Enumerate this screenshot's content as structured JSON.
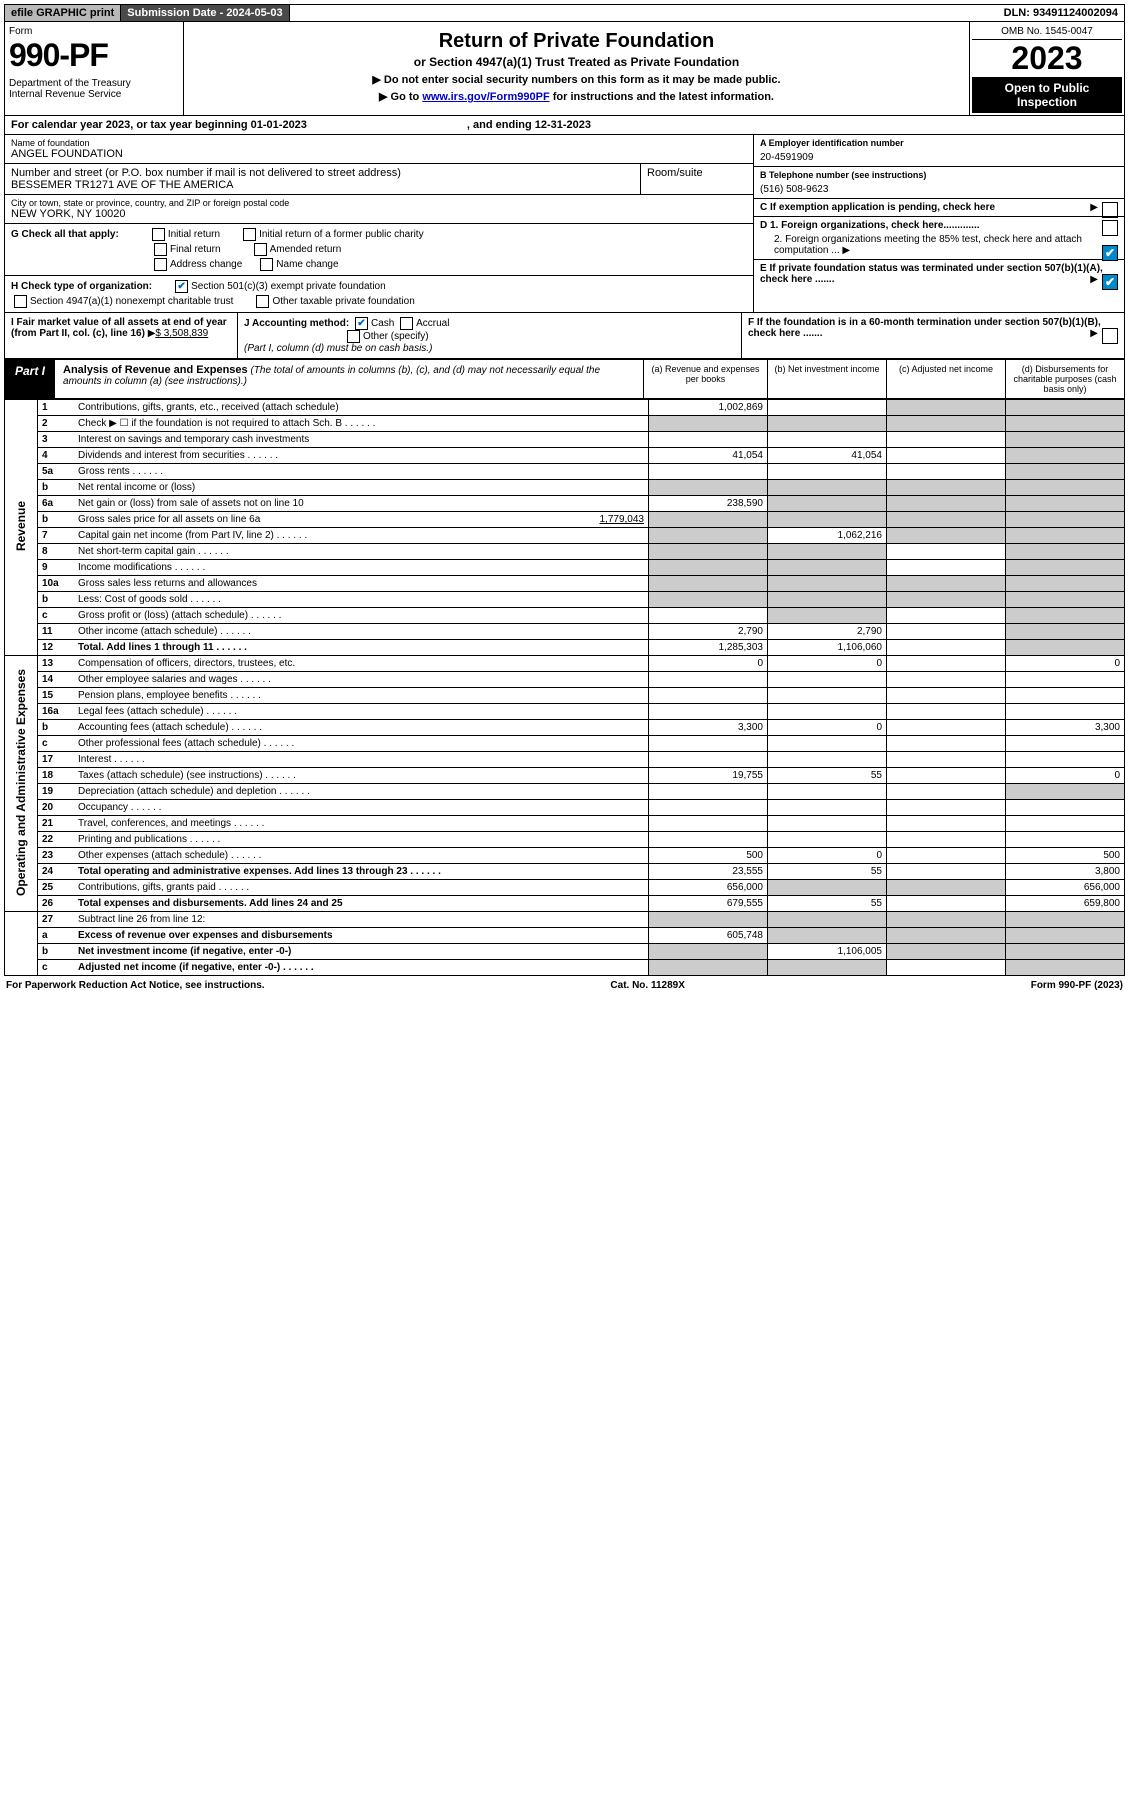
{
  "top": {
    "efile": "efile GRAPHIC print",
    "submission": "Submission Date - 2024-05-03",
    "dln": "DLN: 93491124002094"
  },
  "header": {
    "form_label": "Form",
    "form_number": "990-PF",
    "dept": "Department of the Treasury\nInternal Revenue Service",
    "title": "Return of Private Foundation",
    "subtitle": "or Section 4947(a)(1) Trust Treated as Private Foundation",
    "note1": "▶ Do not enter social security numbers on this form as it may be made public.",
    "note2_pre": "▶ Go to ",
    "note2_link": "www.irs.gov/Form990PF",
    "note2_post": " for instructions and the latest information.",
    "omb": "OMB No. 1545-0047",
    "year": "2023",
    "open": "Open to Public Inspection"
  },
  "calendar": {
    "text": "For calendar year 2023, or tax year beginning 01-01-2023",
    "ending": ", and ending 12-31-2023"
  },
  "info": {
    "name_label": "Name of foundation",
    "name": "ANGEL FOUNDATION",
    "addr_label": "Number and street (or P.O. box number if mail is not delivered to street address)",
    "addr": "BESSEMER TR1271 AVE OF THE AMERICA",
    "room_label": "Room/suite",
    "city_label": "City or town, state or province, country, and ZIP or foreign postal code",
    "city": "NEW YORK, NY  10020",
    "ein_label": "A Employer identification number",
    "ein": "20-4591909",
    "phone_label": "B Telephone number (see instructions)",
    "phone": "(516) 508-9623",
    "c_label": "C If exemption application is pending, check here",
    "d1": "D 1. Foreign organizations, check here.............",
    "d2": "2. Foreign organizations meeting the 85% test, check here and attach computation ...",
    "e_label": "E  If private foundation status was terminated under section 507(b)(1)(A), check here .......",
    "f_label": "F  If the foundation is in a 60-month termination under section 507(b)(1)(B), check here .......",
    "g_label": "G Check all that apply:",
    "g_opts": [
      "Initial return",
      "Initial return of a former public charity",
      "Final return",
      "Amended return",
      "Address change",
      "Name change"
    ],
    "h_label": "H Check type of organization:",
    "h_opt1": "Section 501(c)(3) exempt private foundation",
    "h_opt2": "Section 4947(a)(1) nonexempt charitable trust",
    "h_opt3": "Other taxable private foundation",
    "i_label": "I Fair market value of all assets at end of year (from Part II, col. (c), line 16)",
    "i_value": "$  3,508,839",
    "j_label": "J Accounting method:",
    "j_cash": "Cash",
    "j_accrual": "Accrual",
    "j_other": "Other (specify)",
    "j_note": "(Part I, column (d) must be on cash basis.)"
  },
  "part1": {
    "label": "Part I",
    "title": "Analysis of Revenue and Expenses",
    "title_note": "(The total of amounts in columns (b), (c), and (d) may not necessarily equal the amounts in column (a) (see instructions).)",
    "col_a": "(a) Revenue and expenses per books",
    "col_b": "(b) Net investment income",
    "col_c": "(c) Adjusted net income",
    "col_d": "(d) Disbursements for charitable purposes (cash basis only)"
  },
  "side": {
    "revenue": "Revenue",
    "expenses": "Operating and Administrative Expenses"
  },
  "rows": [
    {
      "n": "1",
      "d": "Contributions, gifts, grants, etc., received (attach schedule)",
      "a": "1,002,869",
      "b": "",
      "c_shade": true,
      "d_shade": true
    },
    {
      "n": "2",
      "d": "Check ▶ ☐ if the foundation is not required to attach Sch. B",
      "dots": true,
      "a_shade": true,
      "b_shade": true,
      "c_shade": true,
      "d_shade": true
    },
    {
      "n": "3",
      "d": "Interest on savings and temporary cash investments",
      "a": "",
      "b": "",
      "c": "",
      "d_shade": true
    },
    {
      "n": "4",
      "d": "Dividends and interest from securities",
      "dots": true,
      "a": "41,054",
      "b": "41,054",
      "c": "",
      "d_shade": true
    },
    {
      "n": "5a",
      "d": "Gross rents",
      "dots": true,
      "a": "",
      "b": "",
      "c": "",
      "d_shade": true
    },
    {
      "n": "b",
      "d": "Net rental income or (loss)",
      "underline": true,
      "a_shade": true,
      "b_shade": true,
      "c_shade": true,
      "d_shade": true
    },
    {
      "n": "6a",
      "d": "Net gain or (loss) from sale of assets not on line 10",
      "a": "238,590",
      "b_shade": true,
      "c_shade": true,
      "d_shade": true
    },
    {
      "n": "b",
      "d": "Gross sales price for all assets on line 6a",
      "val": "1,779,043",
      "underline": true,
      "a_shade": true,
      "b_shade": true,
      "c_shade": true,
      "d_shade": true
    },
    {
      "n": "7",
      "d": "Capital gain net income (from Part IV, line 2)",
      "dots": true,
      "a_shade": true,
      "b": "1,062,216",
      "c_shade": true,
      "d_shade": true
    },
    {
      "n": "8",
      "d": "Net short-term capital gain",
      "dots": true,
      "a_shade": true,
      "b_shade": true,
      "c": "",
      "d_shade": true
    },
    {
      "n": "9",
      "d": "Income modifications",
      "dots": true,
      "a_shade": true,
      "b_shade": true,
      "c": "",
      "d_shade": true
    },
    {
      "n": "10a",
      "d": "Gross sales less returns and allowances",
      "underline": true,
      "a_shade": true,
      "b_shade": true,
      "c_shade": true,
      "d_shade": true
    },
    {
      "n": "b",
      "d": "Less: Cost of goods sold",
      "dots": true,
      "underline": true,
      "a_shade": true,
      "b_shade": true,
      "c_shade": true,
      "d_shade": true
    },
    {
      "n": "c",
      "d": "Gross profit or (loss) (attach schedule)",
      "dots": true,
      "a": "",
      "b_shade": true,
      "c": "",
      "d_shade": true
    },
    {
      "n": "11",
      "d": "Other income (attach schedule)",
      "dots": true,
      "a": "2,790",
      "b": "2,790",
      "c": "",
      "d_shade": true
    },
    {
      "n": "12",
      "d": "Total. Add lines 1 through 11",
      "bold": true,
      "dots": true,
      "a": "1,285,303",
      "b": "1,106,060",
      "c": "",
      "d_shade": true
    }
  ],
  "exp_rows": [
    {
      "n": "13",
      "d": "Compensation of officers, directors, trustees, etc.",
      "a": "0",
      "b": "0",
      "c": "",
      "dd": "0"
    },
    {
      "n": "14",
      "d": "Other employee salaries and wages",
      "dots": true
    },
    {
      "n": "15",
      "d": "Pension plans, employee benefits",
      "dots": true
    },
    {
      "n": "16a",
      "d": "Legal fees (attach schedule)",
      "dots": true
    },
    {
      "n": "b",
      "d": "Accounting fees (attach schedule)",
      "dots": true,
      "a": "3,300",
      "b": "0",
      "dd": "3,300"
    },
    {
      "n": "c",
      "d": "Other professional fees (attach schedule)",
      "dots": true
    },
    {
      "n": "17",
      "d": "Interest",
      "dots": true
    },
    {
      "n": "18",
      "d": "Taxes (attach schedule) (see instructions)",
      "dots": true,
      "a": "19,755",
      "b": "55",
      "dd": "0"
    },
    {
      "n": "19",
      "d": "Depreciation (attach schedule) and depletion",
      "dots": true,
      "d_shade": true
    },
    {
      "n": "20",
      "d": "Occupancy",
      "dots": true
    },
    {
      "n": "21",
      "d": "Travel, conferences, and meetings",
      "dots": true
    },
    {
      "n": "22",
      "d": "Printing and publications",
      "dots": true
    },
    {
      "n": "23",
      "d": "Other expenses (attach schedule)",
      "dots": true,
      "a": "500",
      "b": "0",
      "dd": "500"
    },
    {
      "n": "24",
      "d": "Total operating and administrative expenses. Add lines 13 through 23",
      "bold": true,
      "dots": true,
      "a": "23,555",
      "b": "55",
      "dd": "3,800"
    },
    {
      "n": "25",
      "d": "Contributions, gifts, grants paid",
      "dots": true,
      "a": "656,000",
      "b_shade": true,
      "c_shade": true,
      "dd": "656,000"
    },
    {
      "n": "26",
      "d": "Total expenses and disbursements. Add lines 24 and 25",
      "bold": true,
      "a": "679,555",
      "b": "55",
      "dd": "659,800"
    }
  ],
  "bottom_rows": [
    {
      "n": "27",
      "d": "Subtract line 26 from line 12:",
      "a_shade": true,
      "b_shade": true,
      "c_shade": true,
      "d_shade": true
    },
    {
      "n": "a",
      "d": "Excess of revenue over expenses and disbursements",
      "bold": true,
      "a": "605,748",
      "b_shade": true,
      "c_shade": true,
      "d_shade": true
    },
    {
      "n": "b",
      "d": "Net investment income (if negative, enter -0-)",
      "bold": true,
      "a_shade": true,
      "b": "1,106,005",
      "c_shade": true,
      "d_shade": true
    },
    {
      "n": "c",
      "d": "Adjusted net income (if negative, enter -0-)",
      "bold": true,
      "dots": true,
      "a_shade": true,
      "b_shade": true,
      "c": "",
      "d_shade": true
    }
  ],
  "footer": {
    "left": "For Paperwork Reduction Act Notice, see instructions.",
    "mid": "Cat. No. 11289X",
    "right": "Form 990-PF (2023)"
  }
}
